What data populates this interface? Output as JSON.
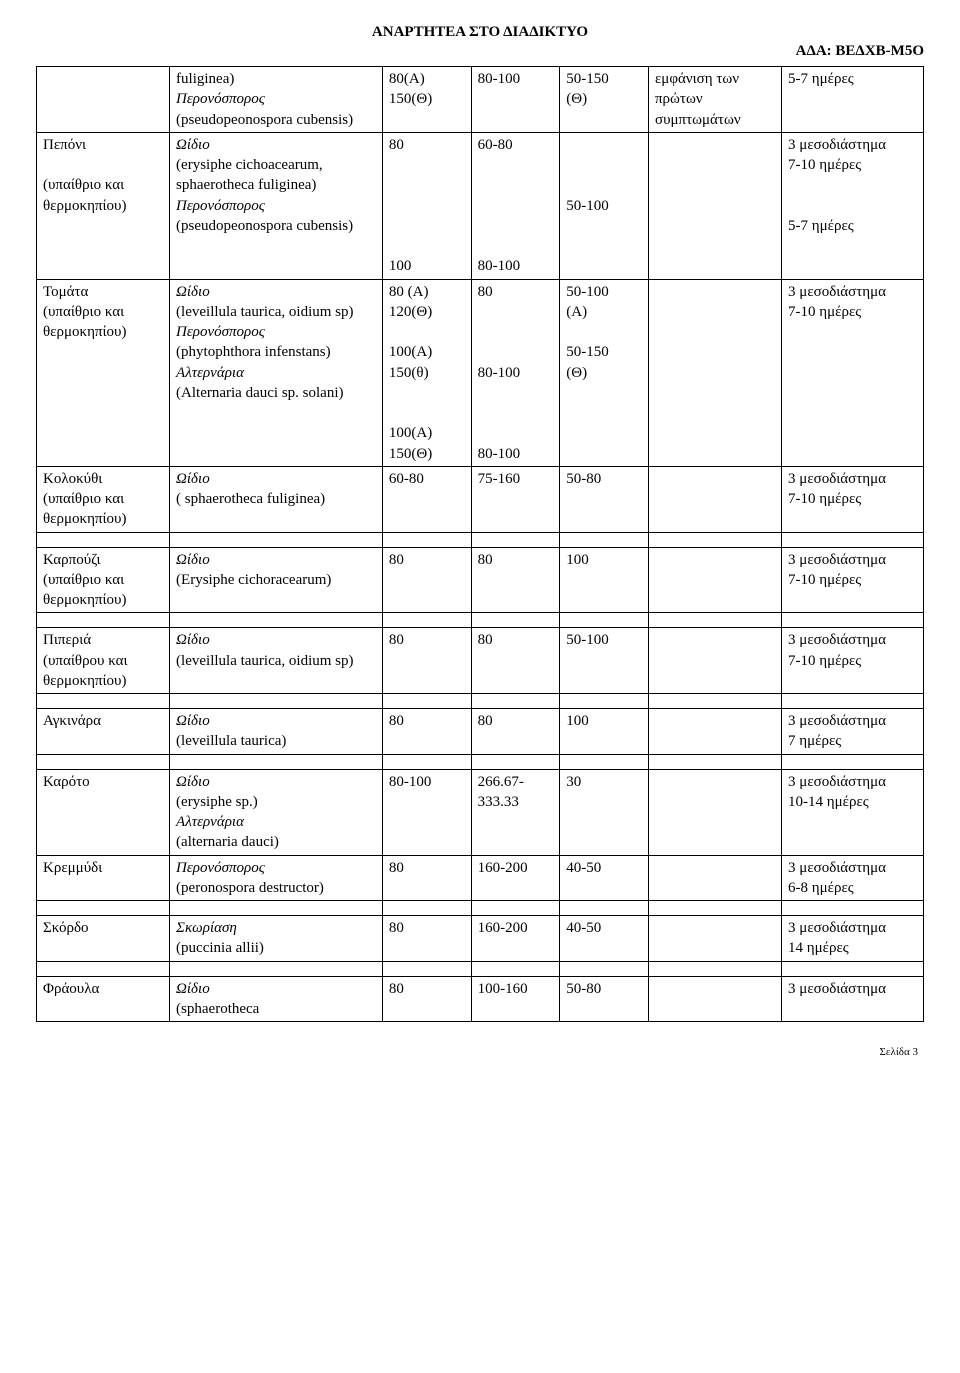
{
  "header": {
    "title": "ΑΝΑΡΤΗΤΕΑ ΣΤΟ ΔΙΑΔΙΚΤΥΟ",
    "ada": "ΑΔΑ: ΒΕΔΧΒ-Μ5Ο"
  },
  "rows": [
    {
      "c0": "",
      "c1": "fuliginea)\nΠερονόσπορος\n(pseudopeonospora cubensis)",
      "c2": "80(Α)\n150(Θ)",
      "c3": "80-100",
      "c4": "50-150\n(Θ)",
      "c5": "εμφάνιση των πρώτων συμπτωμάτων",
      "c6": "5-7 ημέρες"
    },
    {
      "c0": "Πεπόνι\n\n(υπαίθριο και θερμοκηπίου)",
      "c1": "Ωίδιο\n(erysiphe cichoacearum, sphaerotheca fuliginea)\nΠερονόσπορος\n(pseudopeonospora cubensis)",
      "c2": "80\n\n\n\n\n\n100",
      "c3": "60-80\n\n\n\n\n\n80-100",
      "c4": "\n\n\n50-100",
      "c5": "",
      "c6": "3 μεσοδιάστημα\n7-10 ημέρες\n\n\n5-7 ημέρες"
    },
    {
      "c0": "Τομάτα\n(υπαίθριο και θερμοκηπίου)",
      "c1": "Ωίδιο\n(leveillula taurica, oidium sp)\nΠερονόσπορος\n(phytophthora infenstans)\nΑλτερνάρια\n(Alternaria dauci sp. solani)",
      "c2": "80 (Α)\n120(Θ)\n\n100(Α)\n150(θ)\n\n\n100(Α)\n150(Θ)",
      "c3": "80\n\n\n\n80-100\n\n\n\n80-100",
      "c4": "50-100\n(Α)\n\n50-150\n(Θ)",
      "c5": "",
      "c6": "3 μεσοδιάστημα\n7-10 ημέρες"
    },
    {
      "c0": "Κολοκύθι\n(υπαίθριο και θερμοκηπίου)",
      "c1": "Ωίδιο\n( sphaerotheca fuliginea)",
      "c2": "60-80",
      "c3": "75-160",
      "c4": "50-80",
      "c5": "",
      "c6": "3 μεσοδιάστημα\n7-10 ημέρες"
    },
    {
      "spacer": true
    },
    {
      "c0": "Καρπούζι\n(υπαίθριο και θερμοκηπίου)",
      "c1": "Ωίδιο\n (Erysiphe cichoracearum)",
      "c2": "80",
      "c3": "80",
      "c4": "100",
      "c5": "",
      "c6": "3 μεσοδιάστημα\n7-10 ημέρες"
    },
    {
      "spacer": true
    },
    {
      "c0": "Πιπεριά\n(υπαίθρου και θερμοκηπίου)",
      "c1": "Ωίδιο\n(leveillula taurica, oidium sp)",
      "c2": "80",
      "c3": "80",
      "c4": "50-100",
      "c5": "",
      "c6": "3 μεσοδιάστημα\n7-10 ημέρες"
    },
    {
      "spacer": true
    },
    {
      "c0": "Αγκινάρα",
      "c1": "Ωίδιο\n(leveillula taurica)",
      "c2": "80",
      "c3": "80",
      "c4": "100",
      "c5": "",
      "c6": "3 μεσοδιάστημα\n7 ημέρες"
    },
    {
      "spacer": true
    },
    {
      "c0": "Καρότο",
      "c1": "Ωίδιο\n(erysiphe sp.)\nΑλτερνάρια\n(alternaria dauci)",
      "c2": "80-100",
      "c3": "266.67-333.33",
      "c4": "30",
      "c5": "",
      "c6": "3 μεσοδιάστημα\n10-14 ημέρες"
    },
    {
      "c0": "Κρεμμύδι",
      "c1": "Περονόσπορος\n(peronospora destructor)",
      "c2": "80",
      "c3": "160-200",
      "c4": "40-50",
      "c5": "",
      "c6": "3 μεσοδιάστημα\n6-8 ημέρες"
    },
    {
      "spacer": true
    },
    {
      "c0": "Σκόρδο",
      "c1": "Σκωρίαση\n(puccinia allii)",
      "c2": "80",
      "c3": "160-200",
      "c4": "40-50",
      "c5": "",
      "c6": "3 μεσοδιάστημα\n14 ημέρες"
    },
    {
      "spacer": true
    },
    {
      "c0": "Φράουλα",
      "c1": "Ωίδιο\n(sphaerotheca",
      "c2": "80",
      "c3": "100-160",
      "c4": "50-80",
      "c5": "",
      "c6": "3 μεσοδιάστημα"
    }
  ],
  "footer": "Σελίδα 3"
}
